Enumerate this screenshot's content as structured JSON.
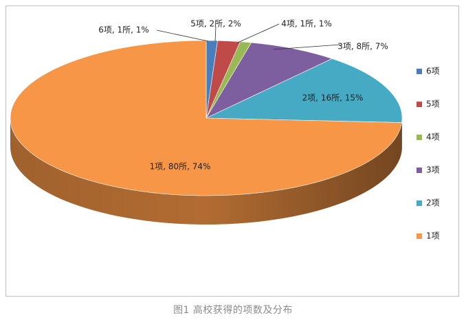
{
  "chart_data": {
    "type": "pie",
    "categories": [
      "6项",
      "5项",
      "4项",
      "3项",
      "2项",
      "1项"
    ],
    "counts": [
      1,
      2,
      1,
      8,
      16,
      80
    ],
    "percents": [
      1,
      2,
      1,
      7,
      15,
      74
    ],
    "data_labels": [
      "6项, 1所, 1%",
      "5项, 2所, 2%",
      "4项, 1所, 1%",
      "3项, 8所, 7%",
      "2项, 16所, 15%",
      "1项, 80所, 74%"
    ],
    "colors": [
      "#4a7ebb",
      "#be4b48",
      "#98b954",
      "#7d5fa0",
      "#46aac5",
      "#f79646"
    ],
    "style": "3d",
    "legend": {
      "position": "right",
      "entries": [
        "6项",
        "5项",
        "4项",
        "3项",
        "2项",
        "1项"
      ]
    }
  },
  "caption": "图1  高校获得的项数及分布"
}
